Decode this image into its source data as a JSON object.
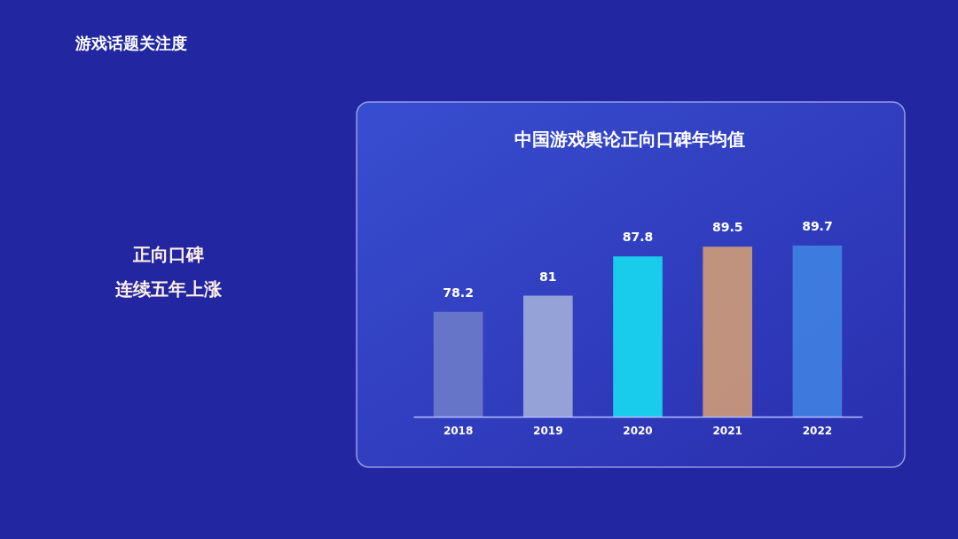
{
  "chart_data": {
    "type": "bar",
    "title": "中国游戏舆论正向口碑年均值",
    "categories": [
      "2018",
      "2019",
      "2020",
      "2021",
      "2022"
    ],
    "values": [
      78.2,
      81,
      87.8,
      89.5,
      89.7
    ],
    "colors": [
      "#6a78c8",
      "#9aa8d8",
      "#19d4ee",
      "#c8987a",
      "#3f7ee0"
    ],
    "data_labels": true,
    "ylim": [
      60,
      89.7
    ],
    "tick_labels": "x",
    "grid": false,
    "legend": false,
    "annotations": [
      "游戏话题关注度",
      "正向口碑",
      "连续五年上涨"
    ]
  }
}
